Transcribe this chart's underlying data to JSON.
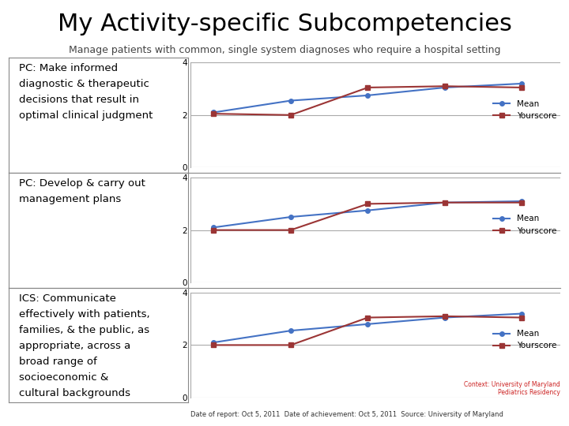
{
  "title": "My Activity-specific Subcompetencies",
  "subtitle": "Manage patients with common, single system diagnoses who require a hospital setting",
  "background_color": "#ffffff",
  "rows": [
    {
      "label": "PC: Make informed\ndiagnostic & therapeutic\ndecisions that result in\noptimal clinical judgment",
      "mean_x": [
        1,
        2,
        3,
        4,
        5
      ],
      "mean_y": [
        2.1,
        2.55,
        2.75,
        3.05,
        3.2
      ],
      "your_x": [
        1,
        2,
        3,
        4,
        5
      ],
      "your_y": [
        2.05,
        2.0,
        3.05,
        3.1,
        3.05
      ]
    },
    {
      "label": "PC: Develop & carry out\nmanagement plans",
      "mean_x": [
        1,
        2,
        3,
        4,
        5
      ],
      "mean_y": [
        2.1,
        2.5,
        2.75,
        3.05,
        3.1
      ],
      "your_x": [
        1,
        2,
        3,
        4,
        5
      ],
      "your_y": [
        2.0,
        2.0,
        3.0,
        3.05,
        3.05
      ]
    },
    {
      "label": "ICS: Communicate\neffectively with patients,\nfamilies, & the public, as\nappropriate, across a\nbroad range of\nsocioeconomic &\ncultural backgrounds",
      "mean_x": [
        1,
        2,
        3,
        4,
        5
      ],
      "mean_y": [
        2.1,
        2.55,
        2.8,
        3.05,
        3.2
      ],
      "your_x": [
        1,
        2,
        3,
        4,
        5
      ],
      "your_y": [
        2.0,
        2.0,
        3.05,
        3.1,
        3.05
      ]
    }
  ],
  "mean_color": "#4472c4",
  "your_color": "#9b3535",
  "ylim": [
    0,
    4
  ],
  "yticks": [
    0,
    2,
    4
  ],
  "footer": "Date of report: Oct 5, 2011  Date of achievement: Oct 5, 2011  Source: University of Maryland",
  "footer2": "Context: University of Maryland\nPediatrics Residency",
  "title_fontsize": 22,
  "subtitle_fontsize": 9,
  "label_fontsize": 9.5
}
